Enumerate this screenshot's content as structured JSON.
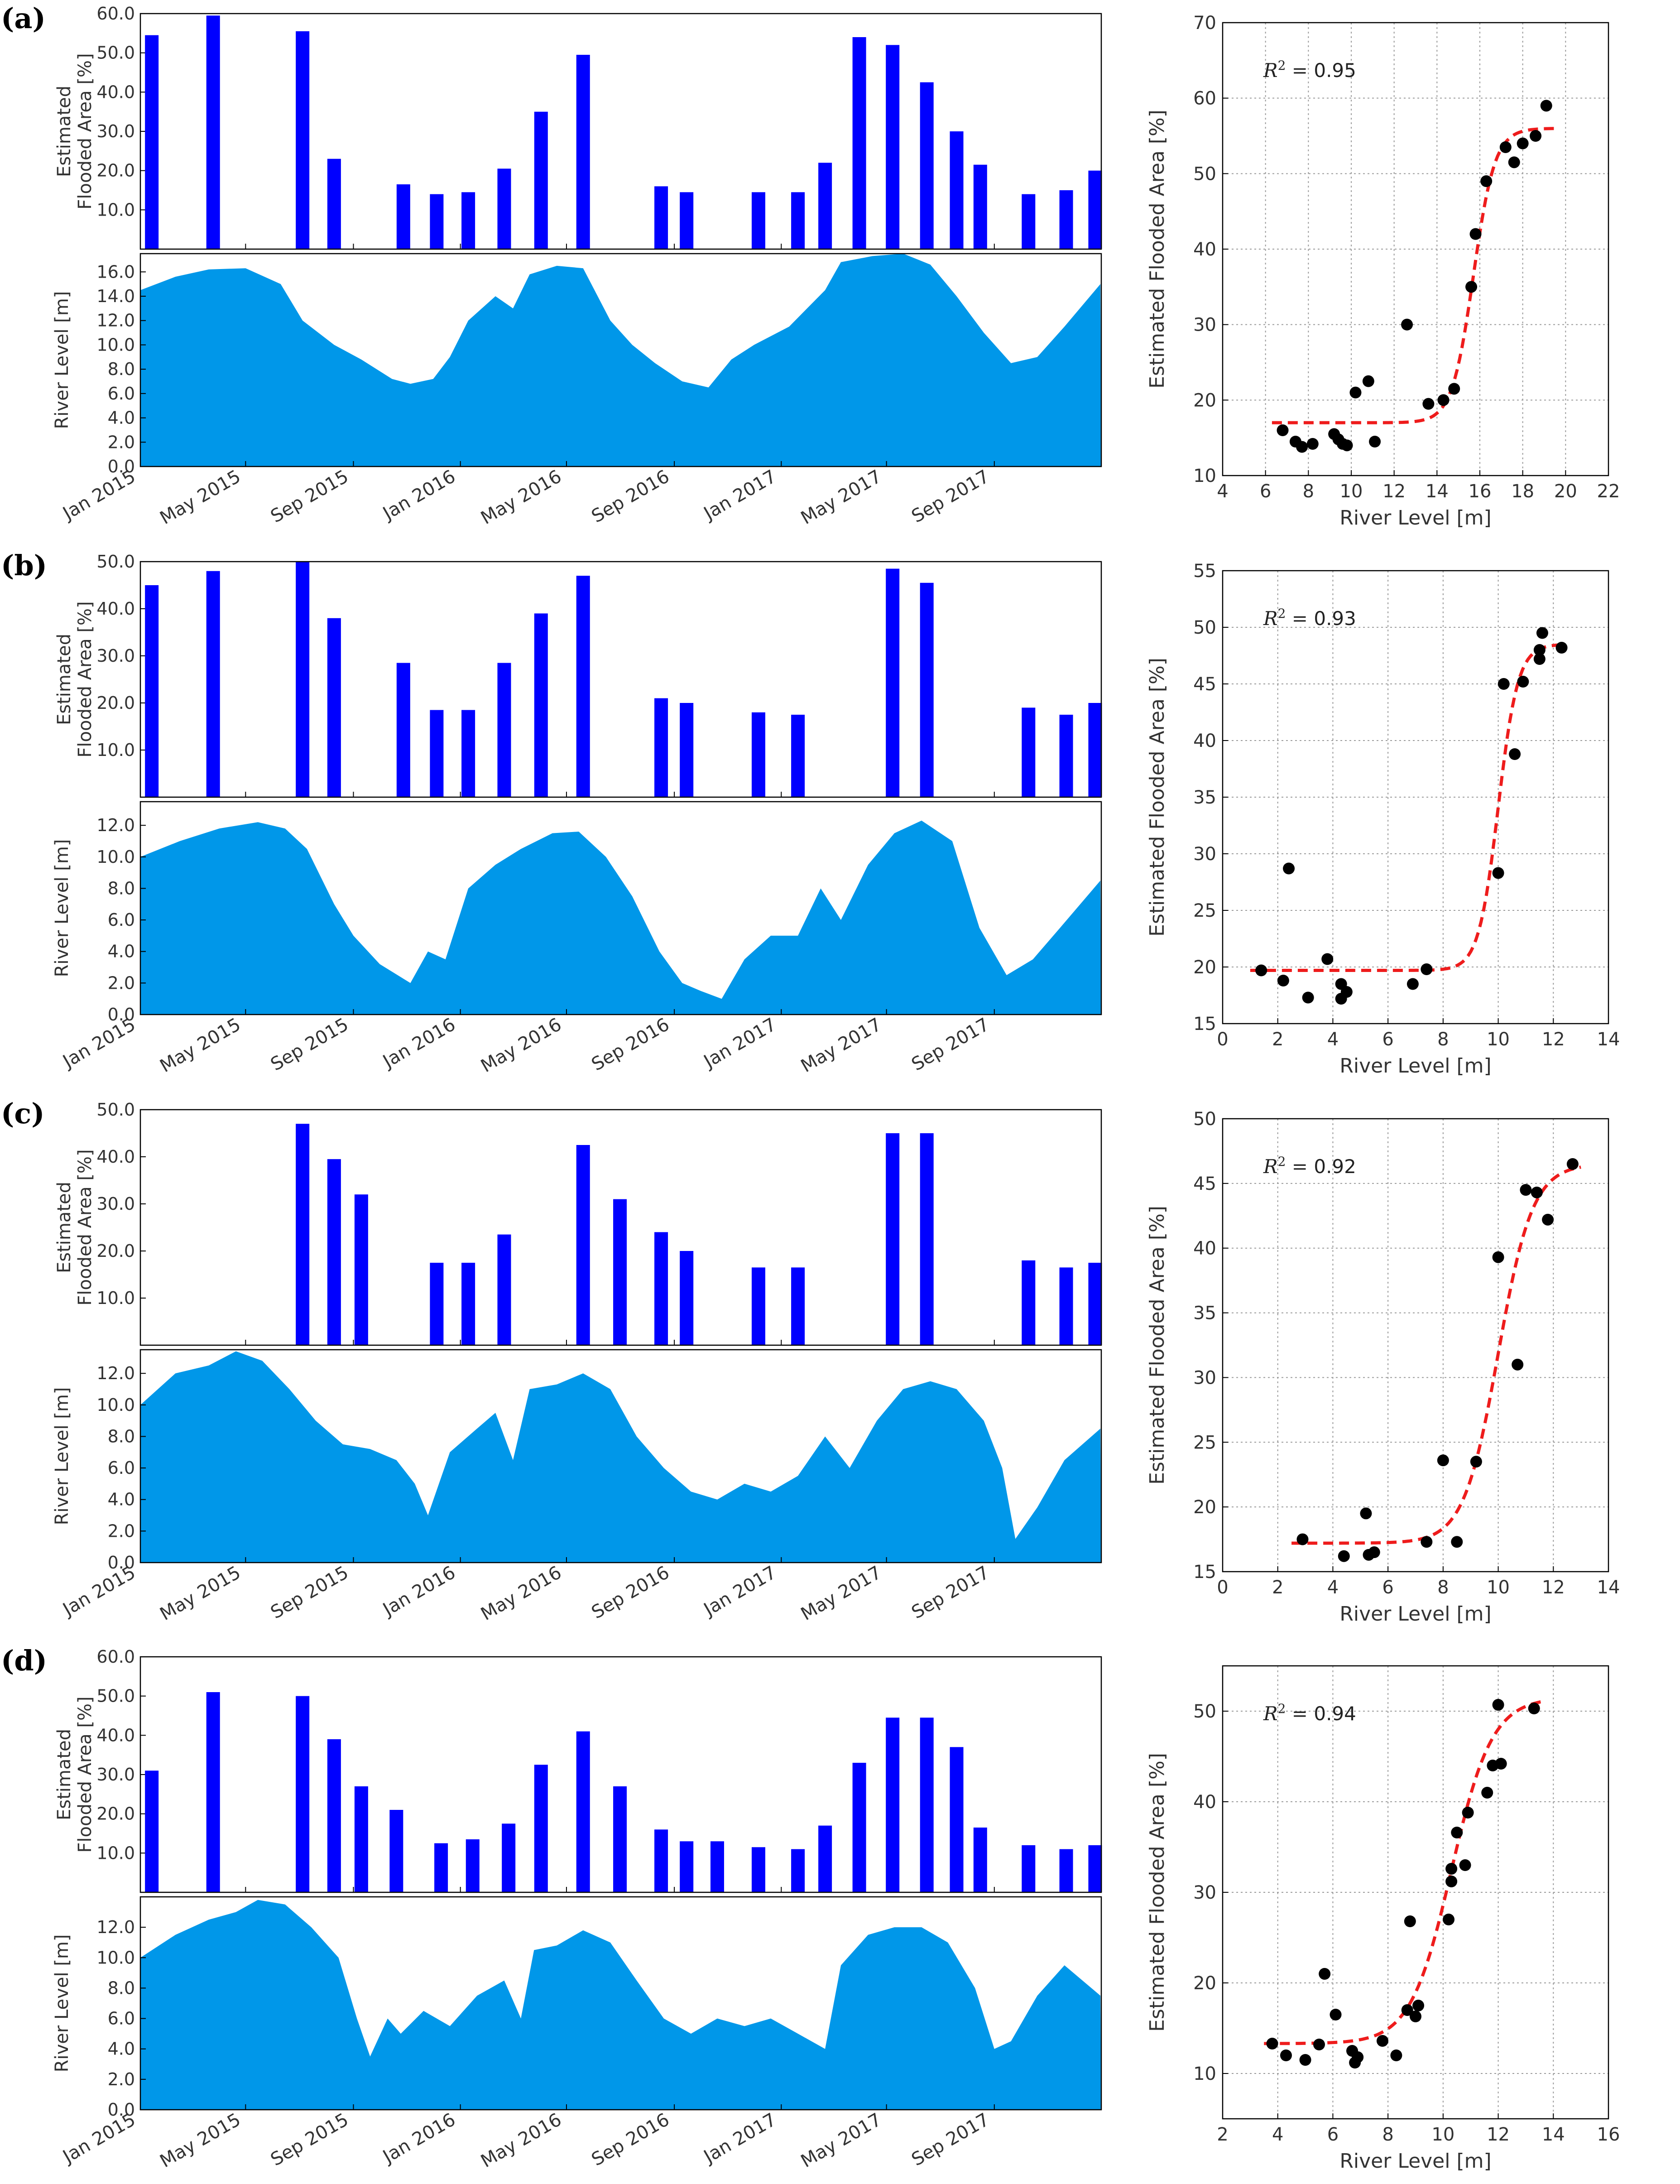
{
  "figure": {
    "date_labels": [
      "Jan 2015",
      "May 2015",
      "Sep 2015",
      "Jan 2016",
      "May 2016",
      "Sep 2016",
      "Jan 2017",
      "May 2017",
      "Sep 2017"
    ],
    "bar_ylabel": [
      "Estimated",
      "Flooded Area [%]"
    ],
    "level_ylabel": "River Level [m]",
    "scatter_xlabel": "River Level [m]",
    "scatter_ylabel": "Estimated Flooded Area [%]",
    "bar_color": "#0000ff",
    "area_color": "#0097e9",
    "fit_color": "#ee1c1c",
    "point_color": "#000000"
  },
  "chart_data": [
    {
      "panel": "(a)",
      "type": "bar",
      "title": "",
      "ylabel": "Estimated Flooded Area [%]",
      "ylim": [
        0,
        60
      ],
      "yticks": [
        10,
        20,
        30,
        40,
        50,
        60
      ],
      "ytick_labels": [
        "10.0",
        "20.0",
        "30.0",
        "40.0",
        "50.0",
        "60.0"
      ],
      "x": [
        "2015-01-14",
        "2015-03-25",
        "2015-07-05",
        "2015-08-10",
        "2015-10-28",
        "2015-12-05",
        "2016-01-10",
        "2016-02-20",
        "2016-04-02",
        "2016-05-20",
        "2016-08-17",
        "2016-09-15",
        "2016-12-06",
        "2017-01-20",
        "2017-02-20",
        "2017-03-31",
        "2017-05-08",
        "2017-06-16",
        "2017-07-20",
        "2017-08-16",
        "2017-10-10",
        "2017-11-22",
        "2017-12-25"
      ],
      "values": [
        54.5,
        59.5,
        55.5,
        23.0,
        16.5,
        14.0,
        14.5,
        20.5,
        35.0,
        49.5,
        16.0,
        14.5,
        14.5,
        14.5,
        22.0,
        54.0,
        52.0,
        42.5,
        30.0,
        21.5,
        14.0,
        15.0,
        20.0
      ]
    },
    {
      "panel": "(a)",
      "type": "area",
      "ylabel": "River Level [m]",
      "ylim": [
        0,
        17.5
      ],
      "yticks": [
        0,
        2,
        4,
        6,
        8,
        10,
        12,
        14,
        16
      ],
      "ytick_labels": [
        "0.0",
        "2.0",
        "4.0",
        "6.0",
        "8.0",
        "10.0",
        "12.0",
        "14.0",
        "16.0"
      ],
      "x": [
        "2015-01-01",
        "2015-02-10",
        "2015-03-20",
        "2015-05-01",
        "2015-06-10",
        "2015-07-05",
        "2015-08-10",
        "2015-09-10",
        "2015-10-15",
        "2015-11-05",
        "2015-12-01",
        "2015-12-20",
        "2016-01-10",
        "2016-02-10",
        "2016-03-01",
        "2016-03-20",
        "2016-04-20",
        "2016-05-20",
        "2016-06-20",
        "2016-07-15",
        "2016-08-10",
        "2016-09-10",
        "2016-10-10",
        "2016-11-05",
        "2016-12-01",
        "2017-01-10",
        "2017-02-20",
        "2017-03-10",
        "2017-04-15",
        "2017-05-20",
        "2017-06-20",
        "2017-07-20",
        "2017-08-20",
        "2017-09-20",
        "2017-10-20",
        "2017-11-20",
        "2017-12-31"
      ],
      "values": [
        14.5,
        15.6,
        16.2,
        16.3,
        15.0,
        12.0,
        10.0,
        8.8,
        7.2,
        6.8,
        7.2,
        9.0,
        12.0,
        14.0,
        13.0,
        15.8,
        16.5,
        16.3,
        12.0,
        10.0,
        8.5,
        7.0,
        6.5,
        8.8,
        10.0,
        11.5,
        14.5,
        16.8,
        17.3,
        17.5,
        16.6,
        14.0,
        11.0,
        8.5,
        9.0,
        11.5,
        15.0
      ]
    },
    {
      "panel": "(a)",
      "type": "scatter",
      "r_squared": "0.95",
      "xlabel": "River Level [m]",
      "ylabel": "Estimated Flooded Area [%]",
      "xlim": [
        4,
        22
      ],
      "ylim": [
        10,
        70
      ],
      "xticks": [
        4,
        6,
        8,
        10,
        12,
        14,
        16,
        18,
        20,
        22
      ],
      "yticks": [
        10,
        20,
        30,
        40,
        50,
        60,
        70
      ],
      "points": [
        [
          6.8,
          16.0
        ],
        [
          7.4,
          14.5
        ],
        [
          7.7,
          13.8
        ],
        [
          8.2,
          14.2
        ],
        [
          9.2,
          15.5
        ],
        [
          9.4,
          14.8
        ],
        [
          9.6,
          14.2
        ],
        [
          9.8,
          14.0
        ],
        [
          10.2,
          21.0
        ],
        [
          10.8,
          22.5
        ],
        [
          11.1,
          14.5
        ],
        [
          12.6,
          30.0
        ],
        [
          13.6,
          19.5
        ],
        [
          14.3,
          20.0
        ],
        [
          14.8,
          21.5
        ],
        [
          15.6,
          35.0
        ],
        [
          15.8,
          42.0
        ],
        [
          16.3,
          49.0
        ],
        [
          17.2,
          53.5
        ],
        [
          17.6,
          51.5
        ],
        [
          18.0,
          54.0
        ],
        [
          18.6,
          55.0
        ],
        [
          19.1,
          59.0
        ]
      ],
      "fit": {
        "lower": 17.0,
        "upper": 56.0,
        "midpoint": 15.7,
        "slope": 2.0,
        "x_range": [
          6.3,
          19.6
        ]
      }
    },
    {
      "panel": "(b)",
      "type": "bar",
      "ylim": [
        0,
        50
      ],
      "yticks": [
        10,
        20,
        30,
        40,
        50
      ],
      "ytick_labels": [
        "10.0",
        "20.0",
        "30.0",
        "40.0",
        "50.0"
      ],
      "x": [
        "2015-01-14",
        "2015-03-25",
        "2015-07-05",
        "2015-08-10",
        "2015-10-28",
        "2015-12-05",
        "2016-01-10",
        "2016-02-20",
        "2016-04-02",
        "2016-05-20",
        "2016-08-17",
        "2016-09-15",
        "2016-12-06",
        "2017-01-20",
        "2017-05-08",
        "2017-06-16",
        "2017-10-10",
        "2017-11-22",
        "2017-12-25"
      ],
      "values": [
        45.0,
        48.0,
        50.0,
        38.0,
        28.5,
        18.5,
        18.5,
        28.5,
        39.0,
        47.0,
        21.0,
        20.0,
        18.0,
        17.5,
        48.5,
        45.5,
        19.0,
        17.5,
        20.0
      ]
    },
    {
      "panel": "(b)",
      "type": "area",
      "ylabel": "River Level [m]",
      "ylim": [
        0,
        13.5
      ],
      "yticks": [
        0,
        2,
        4,
        6,
        8,
        10,
        12
      ],
      "ytick_labels": [
        "0.0",
        "2.0",
        "4.0",
        "6.0",
        "8.0",
        "10.0",
        "12.0"
      ],
      "x": [
        "2015-01-01",
        "2015-02-15",
        "2015-04-01",
        "2015-05-15",
        "2015-06-15",
        "2015-07-10",
        "2015-08-10",
        "2015-09-01",
        "2015-10-01",
        "2015-11-05",
        "2015-11-25",
        "2015-12-15",
        "2016-01-10",
        "2016-02-10",
        "2016-03-10",
        "2016-04-15",
        "2016-05-15",
        "2016-06-15",
        "2016-07-15",
        "2016-08-15",
        "2016-09-10",
        "2016-10-01",
        "2016-10-25",
        "2016-11-20",
        "2016-12-20",
        "2017-01-20",
        "2017-02-15",
        "2017-03-10",
        "2017-04-10",
        "2017-05-10",
        "2017-06-10",
        "2017-07-15",
        "2017-08-15",
        "2017-09-15",
        "2017-10-15",
        "2017-11-15",
        "2017-12-31"
      ],
      "values": [
        10.0,
        11.0,
        11.8,
        12.2,
        11.8,
        10.5,
        7.0,
        5.0,
        3.2,
        2.0,
        4.0,
        3.5,
        8.0,
        9.5,
        10.5,
        11.5,
        11.6,
        10.0,
        7.5,
        4.0,
        2.0,
        1.5,
        1.0,
        3.5,
        5.0,
        5.0,
        8.0,
        6.0,
        9.5,
        11.5,
        12.3,
        11.0,
        5.5,
        2.5,
        3.5,
        5.5,
        8.5
      ]
    },
    {
      "panel": "(b)",
      "type": "scatter",
      "r_squared": "0.93",
      "xlabel": "River Level [m]",
      "ylabel": "Estimated Flooded Area [%]",
      "xlim": [
        0,
        14
      ],
      "ylim": [
        15,
        55
      ],
      "xticks": [
        0,
        2,
        4,
        6,
        8,
        10,
        12,
        14
      ],
      "yticks": [
        15,
        20,
        25,
        30,
        35,
        40,
        45,
        50,
        55
      ],
      "points": [
        [
          1.4,
          19.7
        ],
        [
          2.2,
          18.8
        ],
        [
          2.4,
          28.7
        ],
        [
          3.1,
          17.3
        ],
        [
          3.8,
          20.7
        ],
        [
          4.3,
          18.5
        ],
        [
          4.3,
          17.2
        ],
        [
          4.5,
          17.8
        ],
        [
          6.9,
          18.5
        ],
        [
          7.4,
          19.8
        ],
        [
          10.0,
          28.3
        ],
        [
          10.2,
          45.0
        ],
        [
          10.6,
          38.8
        ],
        [
          10.9,
          45.2
        ],
        [
          11.5,
          47.2
        ],
        [
          11.5,
          48.0
        ],
        [
          11.6,
          49.5
        ],
        [
          12.3,
          48.2
        ]
      ],
      "fit": {
        "lower": 19.7,
        "upper": 48.5,
        "midpoint": 10.0,
        "slope": 2.8,
        "x_range": [
          1.0,
          12.3
        ]
      }
    },
    {
      "panel": "(c)",
      "type": "bar",
      "ylim": [
        0,
        50
      ],
      "yticks": [
        10,
        20,
        30,
        40,
        50
      ],
      "ytick_labels": [
        "10.0",
        "20.0",
        "30.0",
        "40.0",
        "50.0"
      ],
      "x": [
        "2015-07-05",
        "2015-08-10",
        "2015-09-10",
        "2015-12-05",
        "2016-01-10",
        "2016-02-20",
        "2016-05-20",
        "2016-07-01",
        "2016-08-17",
        "2016-09-15",
        "2016-12-06",
        "2017-01-20",
        "2017-05-08",
        "2017-06-16",
        "2017-10-10",
        "2017-11-22",
        "2017-12-25"
      ],
      "values": [
        47.0,
        39.5,
        32.0,
        17.5,
        17.5,
        23.5,
        42.5,
        31.0,
        24.0,
        20.0,
        16.5,
        16.5,
        45.0,
        45.0,
        18.0,
        16.5,
        17.5
      ]
    },
    {
      "panel": "(c)",
      "type": "area",
      "ylabel": "River Level [m]",
      "ylim": [
        0,
        13.5
      ],
      "yticks": [
        0,
        2,
        4,
        6,
        8,
        10,
        12
      ],
      "ytick_labels": [
        "0.0",
        "2.0",
        "4.0",
        "6.0",
        "8.0",
        "10.0",
        "12.0"
      ],
      "x": [
        "2015-01-01",
        "2015-02-10",
        "2015-03-20",
        "2015-04-20",
        "2015-05-20",
        "2015-06-20",
        "2015-07-20",
        "2015-08-20",
        "2015-09-20",
        "2015-10-20",
        "2015-11-10",
        "2015-11-25",
        "2015-12-20",
        "2016-01-20",
        "2016-02-10",
        "2016-03-01",
        "2016-03-20",
        "2016-04-20",
        "2016-05-20",
        "2016-06-20",
        "2016-07-20",
        "2016-08-20",
        "2016-09-20",
        "2016-10-20",
        "2016-11-20",
        "2016-12-20",
        "2017-01-20",
        "2017-02-20",
        "2017-03-20",
        "2017-04-20",
        "2017-05-20",
        "2017-06-20",
        "2017-07-20",
        "2017-08-20",
        "2017-09-10",
        "2017-09-25",
        "2017-10-20",
        "2017-11-20",
        "2017-12-31"
      ],
      "values": [
        10.0,
        12.0,
        12.5,
        13.4,
        12.8,
        11.0,
        9.0,
        7.5,
        7.2,
        6.5,
        5.0,
        3.0,
        7.0,
        8.5,
        9.5,
        6.5,
        11.0,
        11.3,
        12.0,
        11.0,
        8.0,
        6.0,
        4.5,
        4.0,
        5.0,
        4.5,
        5.5,
        8.0,
        6.0,
        9.0,
        11.0,
        11.5,
        11.0,
        9.0,
        6.0,
        1.5,
        3.5,
        6.5,
        8.5
      ]
    },
    {
      "panel": "(c)",
      "type": "scatter",
      "r_squared": "0.92",
      "xlabel": "River Level [m]",
      "ylabel": "Estimated Flooded Area [%]",
      "xlim": [
        0,
        14
      ],
      "ylim": [
        15,
        50
      ],
      "xticks": [
        0,
        2,
        4,
        6,
        8,
        10,
        12,
        14
      ],
      "yticks": [
        15,
        20,
        25,
        30,
        35,
        40,
        45,
        50
      ],
      "points": [
        [
          2.9,
          17.5
        ],
        [
          4.4,
          16.2
        ],
        [
          5.2,
          19.5
        ],
        [
          5.3,
          16.3
        ],
        [
          5.5,
          16.5
        ],
        [
          7.4,
          17.3
        ],
        [
          8.0,
          23.6
        ],
        [
          8.5,
          17.3
        ],
        [
          9.2,
          23.5
        ],
        [
          10.0,
          39.3
        ],
        [
          10.7,
          31.0
        ],
        [
          11.0,
          44.5
        ],
        [
          11.4,
          44.3
        ],
        [
          11.8,
          42.2
        ],
        [
          12.7,
          46.5
        ]
      ],
      "fit": {
        "lower": 17.2,
        "upper": 46.5,
        "midpoint": 10.0,
        "slope": 1.6,
        "x_range": [
          2.5,
          13.0
        ]
      }
    },
    {
      "panel": "(d)",
      "type": "bar",
      "ylim": [
        0,
        60
      ],
      "yticks": [
        10,
        20,
        30,
        40,
        50,
        60
      ],
      "ytick_labels": [
        "10.0",
        "20.0",
        "30.0",
        "40.0",
        "50.0",
        "60.0"
      ],
      "x": [
        "2015-01-14",
        "2015-03-25",
        "2015-07-05",
        "2015-08-10",
        "2015-09-10",
        "2015-10-20",
        "2015-12-10",
        "2016-01-15",
        "2016-02-25",
        "2016-04-02",
        "2016-05-20",
        "2016-07-01",
        "2016-08-17",
        "2016-09-15",
        "2016-10-20",
        "2016-12-06",
        "2017-01-20",
        "2017-02-20",
        "2017-03-31",
        "2017-05-08",
        "2017-06-16",
        "2017-07-20",
        "2017-08-16",
        "2017-10-10",
        "2017-11-22",
        "2017-12-25"
      ],
      "values": [
        31.0,
        51.0,
        50.0,
        39.0,
        27.0,
        21.0,
        12.5,
        13.5,
        17.5,
        32.5,
        41.0,
        27.0,
        16.0,
        13.0,
        13.0,
        11.5,
        11.0,
        17.0,
        33.0,
        44.5,
        44.5,
        37.0,
        16.5,
        12.0,
        11.0,
        12.0
      ]
    },
    {
      "panel": "(d)",
      "type": "area",
      "ylabel": "River Level [m]",
      "ylim": [
        0,
        14
      ],
      "yticks": [
        0,
        2,
        4,
        6,
        8,
        10,
        12
      ],
      "ytick_labels": [
        "0.0",
        "2.0",
        "4.0",
        "6.0",
        "8.0",
        "10.0",
        "12.0"
      ],
      "x": [
        "2015-01-01",
        "2015-02-10",
        "2015-03-20",
        "2015-04-20",
        "2015-05-15",
        "2015-06-15",
        "2015-07-15",
        "2015-08-15",
        "2015-09-05",
        "2015-09-20",
        "2015-10-10",
        "2015-10-25",
        "2015-11-20",
        "2015-12-20",
        "2016-01-20",
        "2016-02-20",
        "2016-03-10",
        "2016-03-25",
        "2016-04-20",
        "2016-05-20",
        "2016-06-20",
        "2016-07-20",
        "2016-08-20",
        "2016-09-20",
        "2016-10-20",
        "2016-11-20",
        "2016-12-20",
        "2017-01-20",
        "2017-02-20",
        "2017-03-10",
        "2017-04-10",
        "2017-05-10",
        "2017-06-10",
        "2017-07-10",
        "2017-08-10",
        "2017-09-01",
        "2017-09-20",
        "2017-10-20",
        "2017-11-20",
        "2017-12-31"
      ],
      "values": [
        10.0,
        11.5,
        12.5,
        13.0,
        13.8,
        13.5,
        12.0,
        10.0,
        6.0,
        3.5,
        6.0,
        5.0,
        6.5,
        5.5,
        7.5,
        8.5,
        6.0,
        10.5,
        10.8,
        11.8,
        11.0,
        8.5,
        6.0,
        5.0,
        6.0,
        5.5,
        6.0,
        5.0,
        4.0,
        9.5,
        11.5,
        12.0,
        12.0,
        11.0,
        8.0,
        4.0,
        4.5,
        7.5,
        9.5,
        7.5
      ]
    },
    {
      "panel": "(d)",
      "type": "scatter",
      "r_squared": "0.94",
      "xlabel": "River Level [m]",
      "ylabel": "Estimated Flooded Area [%]",
      "xlim": [
        2,
        16
      ],
      "ylim": [
        5,
        55
      ],
      "xticks": [
        2,
        4,
        6,
        8,
        10,
        12,
        14,
        16
      ],
      "yticks": [
        10,
        20,
        30,
        40,
        50
      ],
      "points": [
        [
          3.8,
          13.3
        ],
        [
          4.3,
          12.0
        ],
        [
          5.0,
          11.5
        ],
        [
          5.5,
          13.2
        ],
        [
          5.7,
          21.0
        ],
        [
          6.1,
          16.5
        ],
        [
          6.7,
          12.5
        ],
        [
          6.8,
          11.2
        ],
        [
          6.9,
          11.8
        ],
        [
          7.8,
          13.6
        ],
        [
          8.3,
          12.0
        ],
        [
          8.7,
          17.0
        ],
        [
          8.8,
          26.8
        ],
        [
          9.0,
          16.3
        ],
        [
          9.1,
          17.5
        ],
        [
          10.2,
          27.0
        ],
        [
          10.3,
          31.2
        ],
        [
          10.3,
          32.6
        ],
        [
          10.5,
          36.6
        ],
        [
          10.8,
          33.0
        ],
        [
          10.9,
          38.8
        ],
        [
          11.6,
          41.0
        ],
        [
          11.8,
          44.0
        ],
        [
          12.0,
          50.7
        ],
        [
          12.1,
          44.2
        ],
        [
          13.3,
          50.3
        ]
      ],
      "fit": {
        "lower": 13.3,
        "upper": 51.5,
        "midpoint": 10.3,
        "slope": 1.35,
        "x_range": [
          3.5,
          13.7
        ]
      }
    }
  ]
}
